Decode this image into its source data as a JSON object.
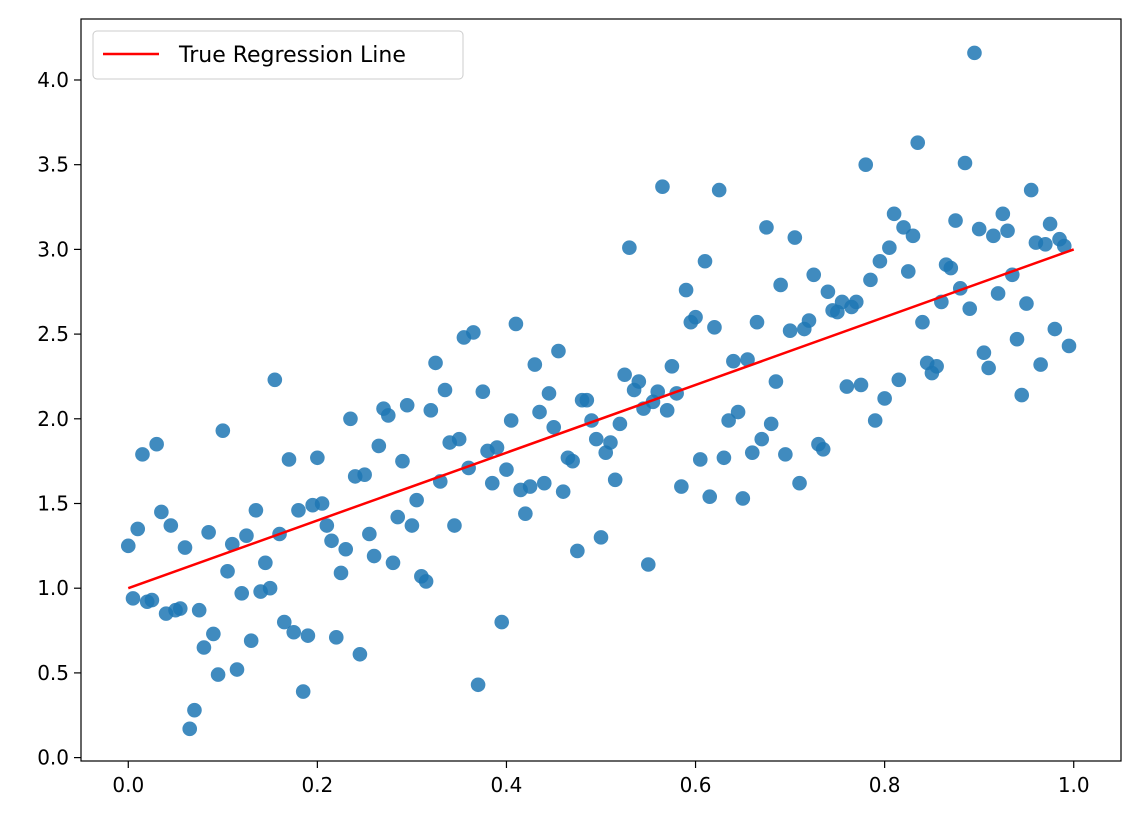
{
  "chart_data": {
    "type": "scatter",
    "title": "",
    "xlabel": "",
    "ylabel": "",
    "xlim": [
      -0.05,
      1.05
    ],
    "ylim": [
      -0.02,
      4.36
    ],
    "x_ticks": [
      "0.0",
      "0.2",
      "0.4",
      "0.6",
      "0.8",
      "1.0"
    ],
    "y_ticks": [
      "0.0",
      "0.5",
      "1.0",
      "1.5",
      "2.0",
      "2.5",
      "3.0",
      "3.5",
      "4.0"
    ],
    "grid": false,
    "legend_position": "top-left",
    "colors": {
      "points": "#1f77b4",
      "line": "#ff0000"
    },
    "regression_line": {
      "label": "True Regression Line",
      "x": [
        0.0,
        1.0
      ],
      "y": [
        1.0,
        3.0
      ]
    },
    "series": [
      {
        "points": [
          [
            0.0,
            1.25
          ],
          [
            0.005,
            0.94
          ],
          [
            0.01,
            1.35
          ],
          [
            0.015,
            1.79
          ],
          [
            0.02,
            0.92
          ],
          [
            0.025,
            0.93
          ],
          [
            0.03,
            1.85
          ],
          [
            0.035,
            1.45
          ],
          [
            0.04,
            0.85
          ],
          [
            0.045,
            1.37
          ],
          [
            0.05,
            0.87
          ],
          [
            0.055,
            0.88
          ],
          [
            0.06,
            1.24
          ],
          [
            0.065,
            0.17
          ],
          [
            0.07,
            0.28
          ],
          [
            0.075,
            0.87
          ],
          [
            0.08,
            0.65
          ],
          [
            0.085,
            1.33
          ],
          [
            0.09,
            0.73
          ],
          [
            0.095,
            0.49
          ],
          [
            0.1,
            1.93
          ],
          [
            0.105,
            1.1
          ],
          [
            0.11,
            1.26
          ],
          [
            0.115,
            0.52
          ],
          [
            0.12,
            0.97
          ],
          [
            0.125,
            1.31
          ],
          [
            0.13,
            0.69
          ],
          [
            0.135,
            1.46
          ],
          [
            0.14,
            0.98
          ],
          [
            0.145,
            1.15
          ],
          [
            0.15,
            1.0
          ],
          [
            0.155,
            2.23
          ],
          [
            0.16,
            1.32
          ],
          [
            0.165,
            0.8
          ],
          [
            0.17,
            1.76
          ],
          [
            0.175,
            0.74
          ],
          [
            0.18,
            1.46
          ],
          [
            0.185,
            0.39
          ],
          [
            0.19,
            0.72
          ],
          [
            0.195,
            1.49
          ],
          [
            0.2,
            1.77
          ],
          [
            0.205,
            1.5
          ],
          [
            0.21,
            1.37
          ],
          [
            0.215,
            1.28
          ],
          [
            0.22,
            0.71
          ],
          [
            0.225,
            1.09
          ],
          [
            0.23,
            1.23
          ],
          [
            0.235,
            2.0
          ],
          [
            0.24,
            1.66
          ],
          [
            0.245,
            0.61
          ],
          [
            0.25,
            1.67
          ],
          [
            0.255,
            1.32
          ],
          [
            0.26,
            1.19
          ],
          [
            0.265,
            1.84
          ],
          [
            0.27,
            2.06
          ],
          [
            0.275,
            2.02
          ],
          [
            0.28,
            1.15
          ],
          [
            0.285,
            1.42
          ],
          [
            0.29,
            1.75
          ],
          [
            0.295,
            2.08
          ],
          [
            0.3,
            1.37
          ],
          [
            0.305,
            1.52
          ],
          [
            0.31,
            1.07
          ],
          [
            0.315,
            1.04
          ],
          [
            0.32,
            2.05
          ],
          [
            0.325,
            2.33
          ],
          [
            0.33,
            1.63
          ],
          [
            0.335,
            2.17
          ],
          [
            0.34,
            1.86
          ],
          [
            0.345,
            1.37
          ],
          [
            0.35,
            1.88
          ],
          [
            0.355,
            2.48
          ],
          [
            0.36,
            1.71
          ],
          [
            0.365,
            2.51
          ],
          [
            0.37,
            0.43
          ],
          [
            0.375,
            2.16
          ],
          [
            0.38,
            1.81
          ],
          [
            0.385,
            1.62
          ],
          [
            0.39,
            1.83
          ],
          [
            0.395,
            0.8
          ],
          [
            0.4,
            1.7
          ],
          [
            0.405,
            1.99
          ],
          [
            0.41,
            2.56
          ],
          [
            0.415,
            1.58
          ],
          [
            0.42,
            1.44
          ],
          [
            0.425,
            1.6
          ],
          [
            0.43,
            2.32
          ],
          [
            0.435,
            2.04
          ],
          [
            0.44,
            1.62
          ],
          [
            0.445,
            2.15
          ],
          [
            0.45,
            1.95
          ],
          [
            0.455,
            2.4
          ],
          [
            0.46,
            1.57
          ],
          [
            0.465,
            1.77
          ],
          [
            0.47,
            1.75
          ],
          [
            0.475,
            1.22
          ],
          [
            0.48,
            2.11
          ],
          [
            0.485,
            2.11
          ],
          [
            0.49,
            1.99
          ],
          [
            0.495,
            1.88
          ],
          [
            0.5,
            1.3
          ],
          [
            0.505,
            1.8
          ],
          [
            0.51,
            1.86
          ],
          [
            0.515,
            1.64
          ],
          [
            0.52,
            1.97
          ],
          [
            0.525,
            2.26
          ],
          [
            0.53,
            3.01
          ],
          [
            0.535,
            2.17
          ],
          [
            0.54,
            2.22
          ],
          [
            0.545,
            2.06
          ],
          [
            0.55,
            1.14
          ],
          [
            0.555,
            2.1
          ],
          [
            0.56,
            2.16
          ],
          [
            0.565,
            3.37
          ],
          [
            0.57,
            2.05
          ],
          [
            0.575,
            2.31
          ],
          [
            0.58,
            2.15
          ],
          [
            0.585,
            1.6
          ],
          [
            0.59,
            2.76
          ],
          [
            0.595,
            2.57
          ],
          [
            0.6,
            2.6
          ],
          [
            0.605,
            1.76
          ],
          [
            0.61,
            2.93
          ],
          [
            0.615,
            1.54
          ],
          [
            0.62,
            2.54
          ],
          [
            0.625,
            3.35
          ],
          [
            0.63,
            1.77
          ],
          [
            0.635,
            1.99
          ],
          [
            0.64,
            2.34
          ],
          [
            0.645,
            2.04
          ],
          [
            0.65,
            1.53
          ],
          [
            0.655,
            2.35
          ],
          [
            0.66,
            1.8
          ],
          [
            0.665,
            2.57
          ],
          [
            0.67,
            1.88
          ],
          [
            0.675,
            3.13
          ],
          [
            0.68,
            1.97
          ],
          [
            0.685,
            2.22
          ],
          [
            0.69,
            2.79
          ],
          [
            0.695,
            1.79
          ],
          [
            0.7,
            2.52
          ],
          [
            0.705,
            3.07
          ],
          [
            0.71,
            1.62
          ],
          [
            0.715,
            2.53
          ],
          [
            0.72,
            2.58
          ],
          [
            0.725,
            2.85
          ],
          [
            0.73,
            1.85
          ],
          [
            0.735,
            1.82
          ],
          [
            0.74,
            2.75
          ],
          [
            0.745,
            2.64
          ],
          [
            0.75,
            2.63
          ],
          [
            0.755,
            2.69
          ],
          [
            0.76,
            2.19
          ],
          [
            0.765,
            2.66
          ],
          [
            0.77,
            2.69
          ],
          [
            0.775,
            2.2
          ],
          [
            0.78,
            3.5
          ],
          [
            0.785,
            2.82
          ],
          [
            0.79,
            1.99
          ],
          [
            0.795,
            2.93
          ],
          [
            0.8,
            2.12
          ],
          [
            0.805,
            3.01
          ],
          [
            0.81,
            3.21
          ],
          [
            0.815,
            2.23
          ],
          [
            0.82,
            3.13
          ],
          [
            0.825,
            2.87
          ],
          [
            0.83,
            3.08
          ],
          [
            0.835,
            3.63
          ],
          [
            0.84,
            2.57
          ],
          [
            0.845,
            2.33
          ],
          [
            0.85,
            2.27
          ],
          [
            0.855,
            2.31
          ],
          [
            0.86,
            2.69
          ],
          [
            0.865,
            2.91
          ],
          [
            0.87,
            2.89
          ],
          [
            0.875,
            3.17
          ],
          [
            0.88,
            2.77
          ],
          [
            0.885,
            3.51
          ],
          [
            0.89,
            2.65
          ],
          [
            0.895,
            4.16
          ],
          [
            0.9,
            3.12
          ],
          [
            0.905,
            2.39
          ],
          [
            0.91,
            2.3
          ],
          [
            0.915,
            3.08
          ],
          [
            0.92,
            2.74
          ],
          [
            0.925,
            3.21
          ],
          [
            0.93,
            3.11
          ],
          [
            0.935,
            2.85
          ],
          [
            0.94,
            2.47
          ],
          [
            0.945,
            2.14
          ],
          [
            0.95,
            2.68
          ],
          [
            0.955,
            3.35
          ],
          [
            0.96,
            3.04
          ],
          [
            0.965,
            2.32
          ],
          [
            0.97,
            3.03
          ],
          [
            0.975,
            3.15
          ],
          [
            0.98,
            2.53
          ],
          [
            0.985,
            3.06
          ],
          [
            0.99,
            3.02
          ],
          [
            0.995,
            2.43
          ]
        ]
      }
    ]
  }
}
